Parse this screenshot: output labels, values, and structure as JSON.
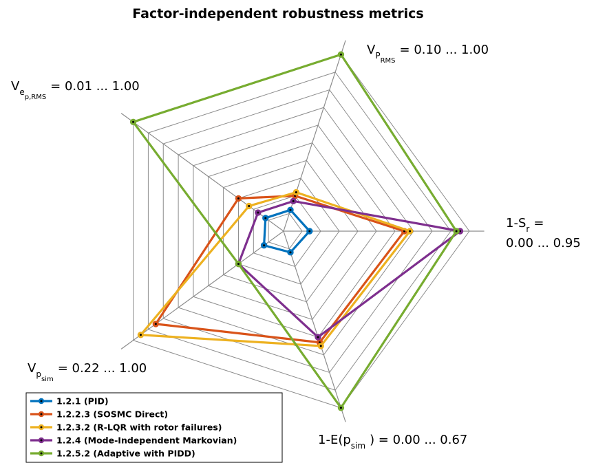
{
  "chart_data": {
    "type": "radar",
    "title": "Factor-independent robustness metrics",
    "rings": 10,
    "axes": [
      {
        "base": "V",
        "sub": "P",
        "subsub": "RMS",
        "range_text": "=  0.10 ...  1.00",
        "min": 0.1,
        "max": 1.0
      },
      {
        "base": "1-S",
        "sub": "r",
        "subsub": "",
        "range_text": "=",
        "range_text2": "0.00 ...  0.95",
        "min": 0.0,
        "max": 0.95
      },
      {
        "base": "1-E(p",
        "sub": "sim",
        "subsub": "",
        "range_text": ") =  0.00 ...  0.67",
        "min": 0.0,
        "max": 0.67
      },
      {
        "base": "V",
        "sub": "p",
        "subsub": "sim",
        "range_text": "=  0.22 ...  1.00",
        "min": 0.22,
        "max": 1.0
      },
      {
        "base": "V",
        "sub": "e",
        "subsub": "p,RMS",
        "range_text": "=  0.01 ...  1.00",
        "min": 0.01,
        "max": 1.0
      }
    ],
    "series_values_note": "values normalized 0..1 along each axis",
    "series": [
      {
        "name": "1.2.1 (PID)",
        "color": "#0072BD",
        "values": [
          0.12,
          0.14,
          0.12,
          0.13,
          0.12
        ]
      },
      {
        "name": "1.2.2.3 (SOSMC Direct)",
        "color": "#D95319",
        "values": [
          0.2,
          0.65,
          0.63,
          0.85,
          0.3
        ]
      },
      {
        "name": "1.2.3.2 (R-LQR with rotor failures)",
        "color": "#EDB120",
        "values": [
          0.22,
          0.68,
          0.65,
          0.95,
          0.23
        ]
      },
      {
        "name": "1.2.4 (Mode-Independent Markovian)",
        "color": "#7E2F8E",
        "values": [
          0.17,
          0.95,
          0.6,
          0.3,
          0.17
        ]
      },
      {
        "name": "1.2.5.2 (Adaptive with PIDD)",
        "color": "#77AC30",
        "values": [
          1.0,
          0.93,
          1.0,
          0.3,
          1.0
        ]
      }
    ]
  }
}
